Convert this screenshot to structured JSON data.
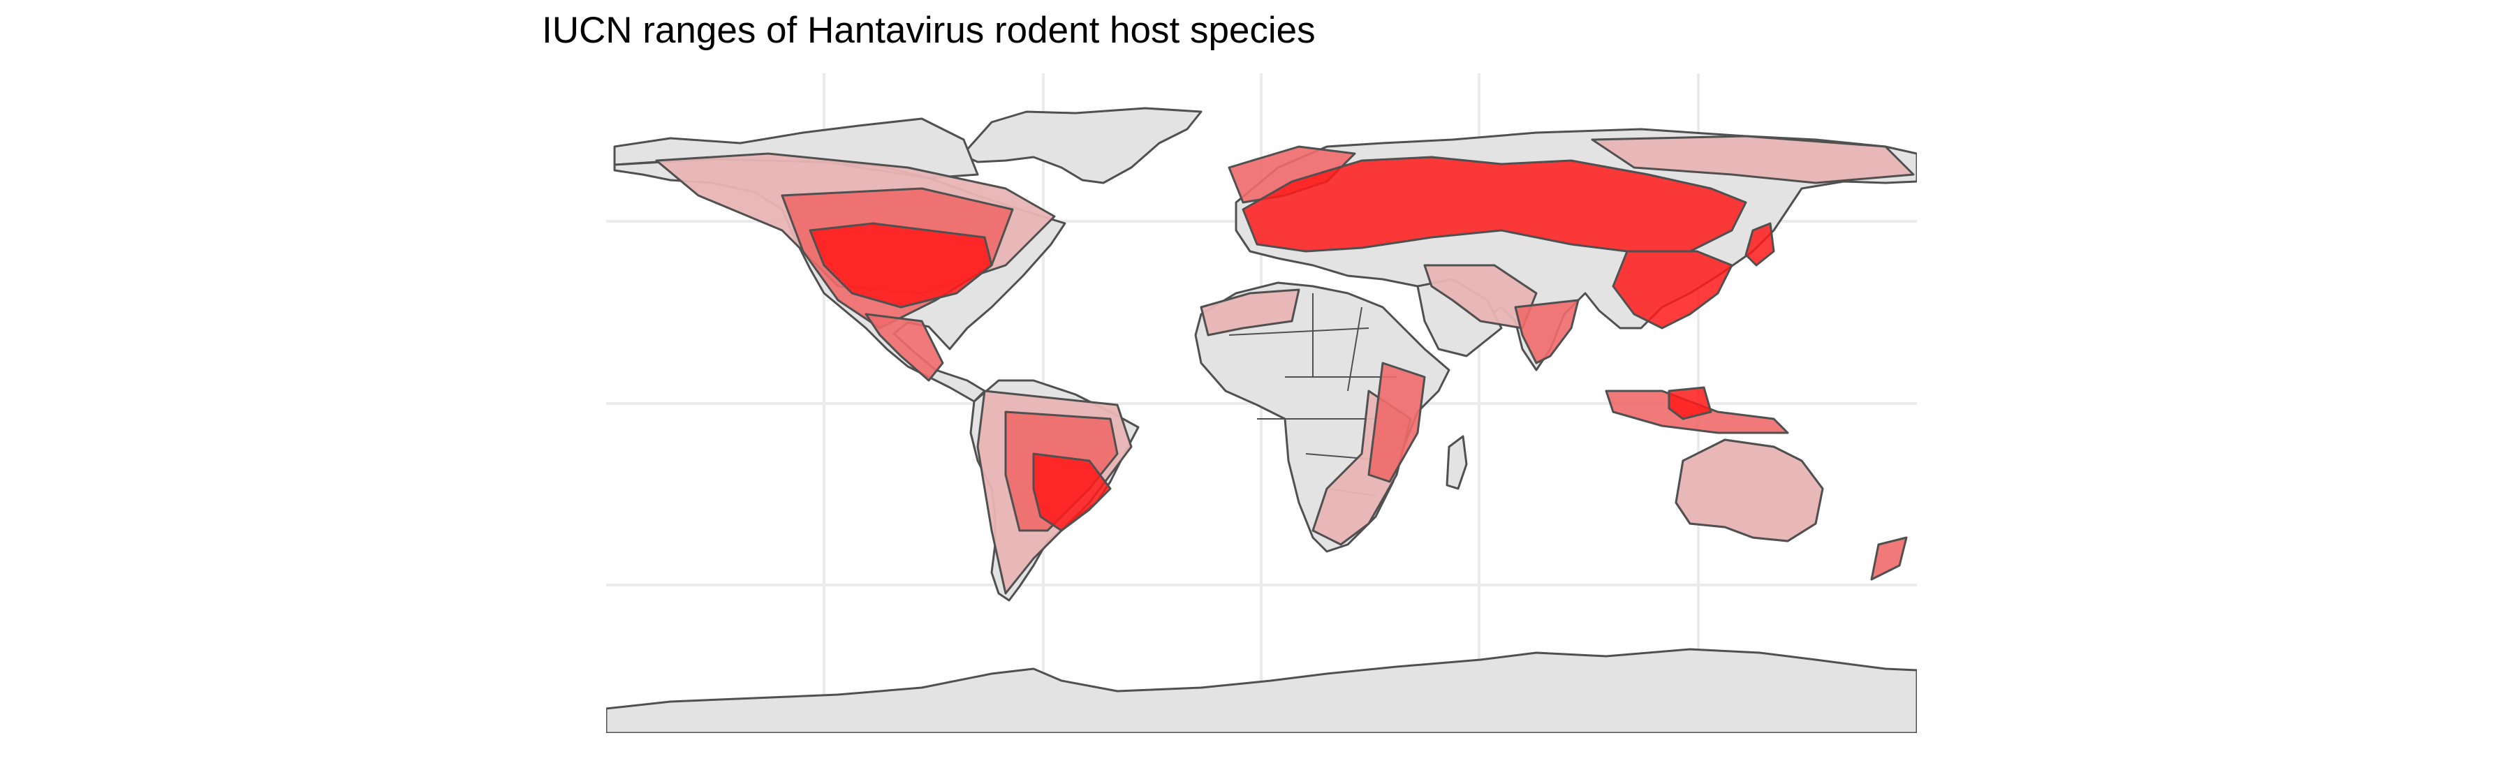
{
  "title": "IUCN ranges of Hantavirus rodent host species",
  "colors": {
    "land": "#e3e3e3",
    "border": "#505050",
    "range_light": "#e8b4b4",
    "range_mid": "#ef6a6a",
    "range_dense": "#ff1a1a",
    "graticule": "#ebebeb"
  }
}
